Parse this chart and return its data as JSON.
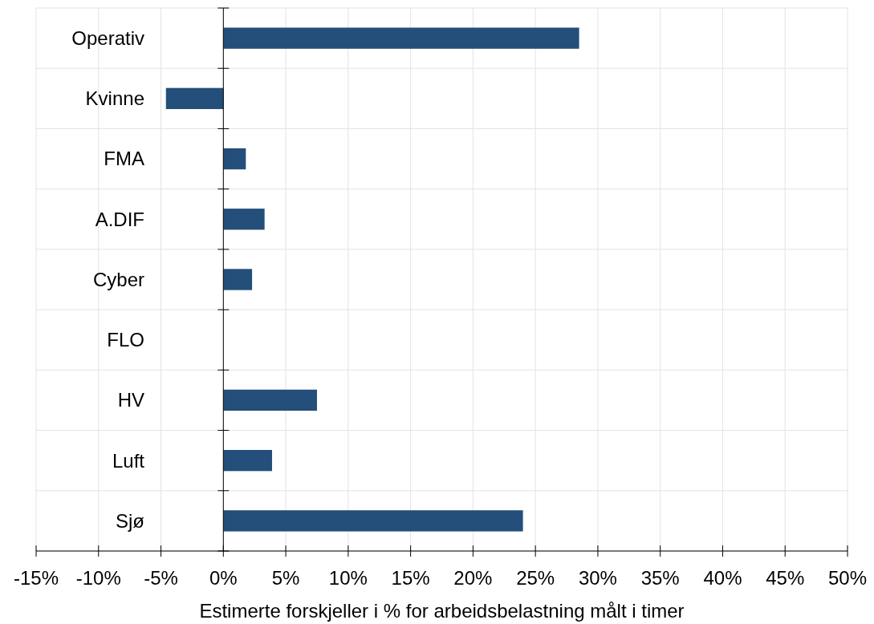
{
  "chart_data": {
    "type": "bar",
    "orientation": "horizontal",
    "xlabel": "Estimerte forskjeller i % for arbeidsbelastning målt i timer",
    "categories": [
      "Operativ",
      "Kvinne",
      "FMA",
      "A.DIF",
      "Cyber",
      "FLO",
      "HV",
      "Luft",
      "Sjø"
    ],
    "values": [
      28.5,
      -4.6,
      1.8,
      3.3,
      2.3,
      0,
      7.5,
      3.9,
      24.0
    ],
    "color": "#234f7a",
    "xlim": [
      -15,
      50
    ],
    "xticks": [
      {
        "value": -15,
        "label": "-15%"
      },
      {
        "value": -10,
        "label": "-10%"
      },
      {
        "value": -5,
        "label": "-5%"
      },
      {
        "value": 0,
        "label": "0%"
      },
      {
        "value": 5,
        "label": "5%"
      },
      {
        "value": 10,
        "label": "10%"
      },
      {
        "value": 15,
        "label": "15%"
      },
      {
        "value": 20,
        "label": "20%"
      },
      {
        "value": 25,
        "label": "25%"
      },
      {
        "value": 30,
        "label": "30%"
      },
      {
        "value": 35,
        "label": "35%"
      },
      {
        "value": 40,
        "label": "40%"
      },
      {
        "value": 45,
        "label": "45%"
      },
      {
        "value": 50,
        "label": "50%"
      }
    ],
    "grid": true
  }
}
